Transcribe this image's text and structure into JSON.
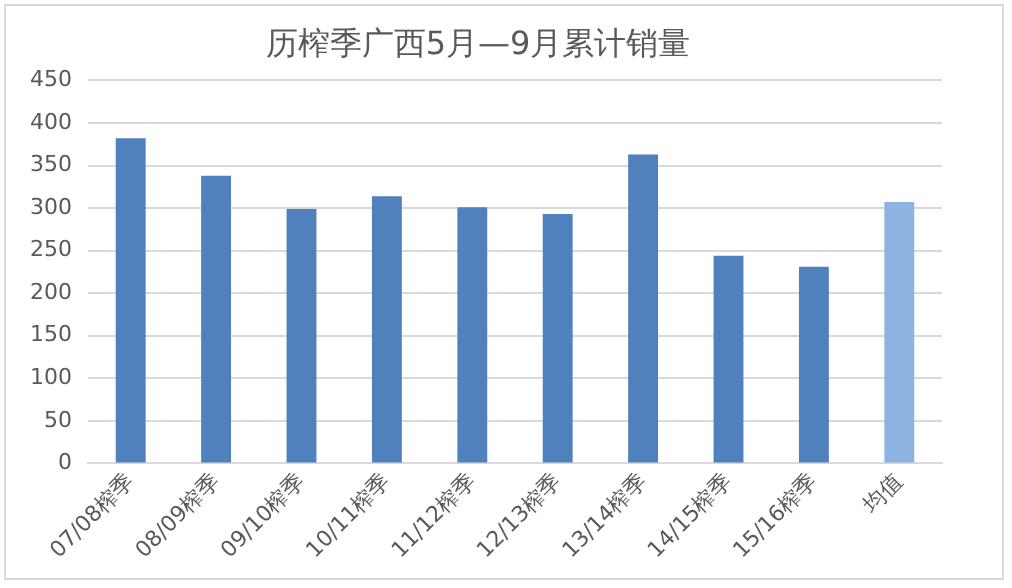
{
  "chart_data": {
    "type": "bar",
    "title": "历榨季广西5月—9月累计销量",
    "categories": [
      "07/08榨季",
      "08/09榨季",
      "09/10榨季",
      "10/11榨季",
      "11/12榨季",
      "12/13榨季",
      "13/14榨季",
      "14/15榨季",
      "15/16榨季",
      "均值"
    ],
    "values": [
      382,
      338,
      299,
      314,
      301,
      293,
      363,
      244,
      231,
      307
    ],
    "colors": [
      "#4f81bd",
      "#4f81bd",
      "#4f81bd",
      "#4f81bd",
      "#4f81bd",
      "#4f81bd",
      "#4f81bd",
      "#4f81bd",
      "#4f81bd",
      "#8db3e2"
    ],
    "ylim": [
      0,
      450
    ],
    "yticks": [
      0,
      50,
      100,
      150,
      200,
      250,
      300,
      350,
      400,
      450
    ],
    "grid": "y",
    "legend": false
  }
}
